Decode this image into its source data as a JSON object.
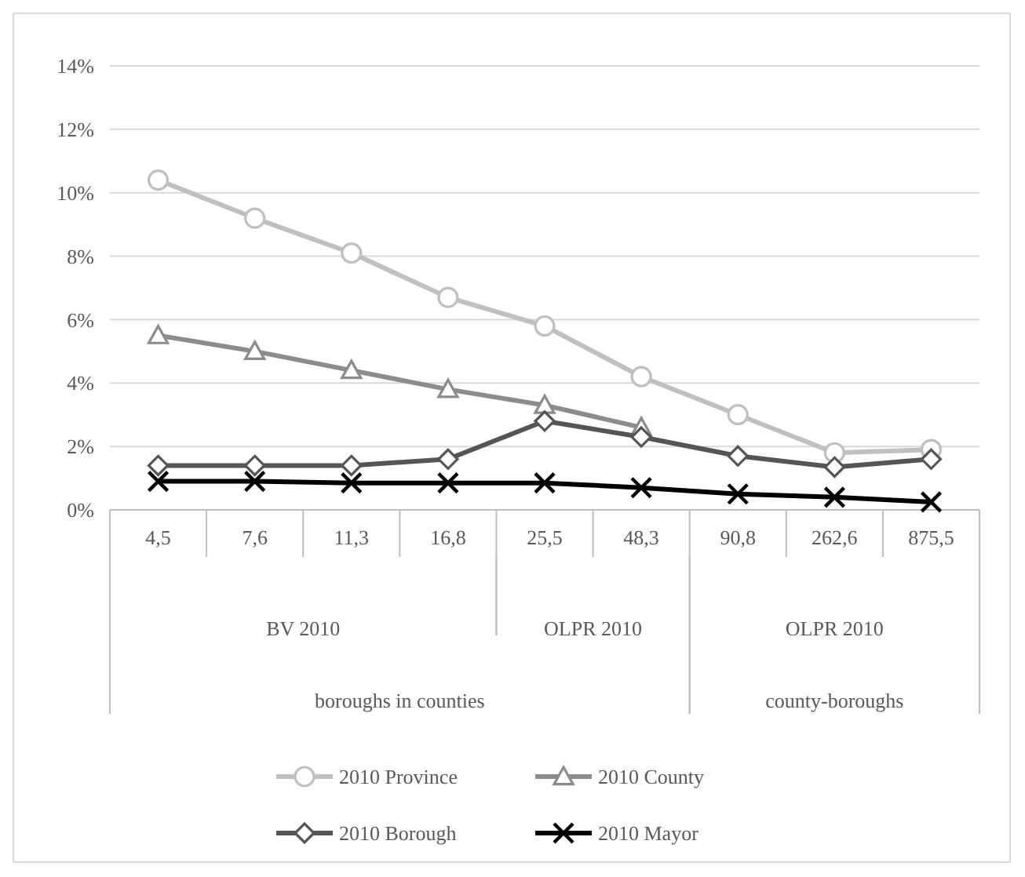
{
  "chart_data": {
    "type": "line",
    "categories": [
      "4,5",
      "7,6",
      "11,3",
      "16,8",
      "25,5",
      "48,3",
      "90,8",
      "262,6",
      "875,5"
    ],
    "series": [
      {
        "name": "2010 Province",
        "color": "#c0c0c0",
        "marker": "circle",
        "values": [
          10.4,
          9.2,
          8.1,
          6.7,
          5.8,
          4.2,
          3.0,
          1.8,
          1.9
        ]
      },
      {
        "name": "2010 County",
        "color": "#8c8c8c",
        "marker": "triangle",
        "values": [
          5.5,
          5.0,
          4.4,
          3.8,
          3.3,
          2.6,
          null,
          null,
          null
        ]
      },
      {
        "name": "2010 Borough",
        "color": "#555555",
        "marker": "diamond",
        "values": [
          1.4,
          1.4,
          1.4,
          1.6,
          2.8,
          2.3,
          1.7,
          1.35,
          1.6
        ]
      },
      {
        "name": "2010 Mayor",
        "color": "#000000",
        "marker": "cross",
        "values": [
          0.9,
          0.9,
          0.85,
          0.85,
          0.85,
          0.7,
          0.5,
          0.4,
          0.25
        ]
      }
    ],
    "ylim": [
      0,
      14
    ],
    "yticks": [
      {
        "value": 0,
        "label": "0%"
      },
      {
        "value": 2,
        "label": "2%"
      },
      {
        "value": 4,
        "label": "4%"
      },
      {
        "value": 6,
        "label": "6%"
      },
      {
        "value": 8,
        "label": "8%"
      },
      {
        "value": 10,
        "label": "10%"
      },
      {
        "value": 12,
        "label": "12%"
      },
      {
        "value": 14,
        "label": "14%"
      }
    ],
    "grid": "y",
    "legend": "bottom",
    "annotations": [
      "BV 2010",
      "OLPR 2010",
      "OLPR 2010",
      "boroughs in counties",
      "county-boroughs"
    ]
  }
}
